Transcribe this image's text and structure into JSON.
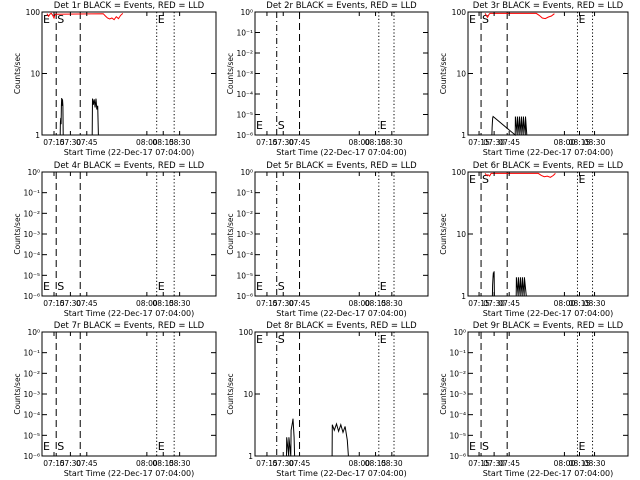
{
  "figure": {
    "xlabel": "Start Time (22-Dec-17 07:04:00)",
    "ylabel": "Counts/sec"
  },
  "chart_data": [
    {
      "type": "line",
      "title": "Det 1r BLACK = Events, RED = LLD",
      "xticks": [
        "07:15",
        "07:30",
        "07:45",
        "08:00",
        "08:15",
        "08:30"
      ],
      "yscale": "log",
      "yticks": [
        "1",
        "10",
        "100"
      ],
      "ylim": [
        1,
        100
      ],
      "markers": [
        {
          "label": "E",
          "time": "07:04",
          "style": "none"
        },
        {
          "label": "S",
          "time": "07:17",
          "style": "long-dash"
        },
        {
          "label": "",
          "time": "07:39",
          "style": "long-dash"
        },
        {
          "label": "E",
          "time": "08:09",
          "style": "dotted"
        },
        {
          "label": "",
          "time": "08:25",
          "style": "dotted"
        }
      ],
      "series": [
        {
          "color": "#000000",
          "points": [
            [
              7.207,
              1.0
            ],
            [
              7.208,
              1.6
            ],
            [
              7.212,
              1.9
            ],
            [
              7.215,
              1.5
            ],
            [
              7.218,
              3.0
            ],
            [
              7.22,
              4.0
            ],
            [
              7.222,
              3.1
            ],
            [
              7.225,
              3.0
            ],
            [
              7.228,
              3.8
            ],
            [
              7.231,
              3.0
            ],
            [
              7.234,
              1.0
            ],
            [
              7.5,
              1.0
            ],
            [
              7.502,
              3.9
            ],
            [
              7.51,
              3.1
            ],
            [
              7.518,
              3.8
            ],
            [
              7.526,
              2.8
            ],
            [
              7.534,
              3.9
            ],
            [
              7.542,
              2.6
            ],
            [
              7.55,
              3.0
            ],
            [
              7.556,
              1.0
            ]
          ]
        },
        {
          "color": "#ff0000",
          "points": [
            [
              7.085,
              94
            ],
            [
              7.1,
              85
            ],
            [
              7.115,
              93
            ],
            [
              7.125,
              95
            ],
            [
              7.135,
              90
            ],
            [
              7.15,
              80
            ],
            [
              7.16,
              92
            ],
            [
              7.6,
              94
            ],
            [
              7.62,
              86
            ],
            [
              7.64,
              80
            ],
            [
              7.66,
              77
            ],
            [
              7.68,
              80
            ],
            [
              7.7,
              75
            ],
            [
              7.72,
              84
            ],
            [
              7.74,
              78
            ],
            [
              7.76,
              88
            ],
            [
              7.78,
              95
            ]
          ]
        }
      ]
    },
    {
      "type": "line",
      "title": "Det 2r BLACK = Events, RED = LLD",
      "xticks": [
        "07:15",
        "07:30",
        "07:45",
        "08:00",
        "08:15",
        "08:30"
      ],
      "yscale": "log",
      "yticks": [
        "10⁰",
        "10⁻¹",
        "10⁻²",
        "10⁻³",
        "10⁻⁴",
        "10⁻⁵",
        "10⁻⁶"
      ],
      "ylim": [
        1e-06,
        1
      ],
      "markers": [
        {
          "label": "E",
          "time": "07:04",
          "style": "none"
        },
        {
          "label": "S",
          "time": "07:24",
          "style": "dash-dot"
        },
        {
          "label": "",
          "time": "07:45",
          "style": "long-dash"
        },
        {
          "label": "E",
          "time": "08:18",
          "style": "dotted"
        },
        {
          "label": "",
          "time": "08:32",
          "style": "dotted"
        }
      ],
      "series": []
    },
    {
      "type": "line",
      "title": "Det 3r BLACK = Events, RED = LLD",
      "xticks": [
        "07:15",
        "07:30",
        "07:45",
        "08:00",
        "08:15",
        "08:30"
      ],
      "yscale": "log",
      "yticks": [
        "1",
        "10",
        "100"
      ],
      "ylim": [
        1,
        100
      ],
      "markers": [
        {
          "label": "E",
          "time": "07:04",
          "style": "none"
        },
        {
          "label": "S",
          "time": "07:17",
          "style": "long-dash"
        },
        {
          "label": "",
          "time": "07:43",
          "style": "long-dash"
        },
        {
          "label": "E",
          "time": "08:13",
          "style": "dotted"
        },
        {
          "label": "",
          "time": "08:28",
          "style": "dotted"
        }
      ],
      "series": [
        {
          "color": "#000000",
          "points": [
            [
              7.278,
              1.0
            ],
            [
              7.28,
              1.3
            ],
            [
              7.283,
              1.6
            ],
            [
              7.286,
              1.9
            ],
            [
              7.29,
              2.0
            ],
            [
              7.51,
              1.0
            ],
            [
              7.512,
              2.0
            ],
            [
              7.53,
              1.0
            ],
            [
              7.532,
              2.0
            ],
            [
              7.55,
              1.0
            ],
            [
              7.552,
              2.0
            ],
            [
              7.57,
              1.0
            ],
            [
              7.572,
              2.0
            ],
            [
              7.59,
              1.0
            ],
            [
              7.592,
              2.0
            ],
            [
              7.61,
              1.0
            ],
            [
              7.612,
              2.0
            ],
            [
              7.625,
              1.0
            ]
          ]
        },
        {
          "color": "#ff0000",
          "points": [
            [
              7.21,
              95
            ],
            [
              7.225,
              86
            ],
            [
              7.235,
              82
            ],
            [
              7.25,
              92
            ],
            [
              7.26,
              95
            ],
            [
              7.72,
              95
            ],
            [
              7.75,
              88
            ],
            [
              7.78,
              80
            ],
            [
              7.81,
              78
            ],
            [
              7.84,
              83
            ],
            [
              7.87,
              86
            ],
            [
              7.9,
              94
            ]
          ]
        }
      ]
    },
    {
      "type": "line",
      "title": "Det 4r BLACK = Events, RED = LLD",
      "xticks": [
        "07:15",
        "07:30",
        "07:45",
        "08:00",
        "08:15",
        "08:30"
      ],
      "yscale": "log",
      "yticks": [
        "10⁰",
        "10⁻¹",
        "10⁻²",
        "10⁻³",
        "10⁻⁴",
        "10⁻⁵",
        "10⁻⁶"
      ],
      "ylim": [
        1e-06,
        1
      ],
      "markers": [
        {
          "label": "E",
          "time": "07:04",
          "style": "none"
        },
        {
          "label": "S",
          "time": "07:17",
          "style": "long-dash"
        },
        {
          "label": "",
          "time": "07:39",
          "style": "long-dash"
        },
        {
          "label": "E",
          "time": "08:09",
          "style": "dotted"
        },
        {
          "label": "",
          "time": "08:25",
          "style": "dotted"
        }
      ],
      "series": []
    },
    {
      "type": "line",
      "title": "Det 5r BLACK = Events, RED = LLD",
      "xticks": [
        "07:15",
        "07:30",
        "07:45",
        "08:00",
        "08:15",
        "08:30"
      ],
      "yscale": "log",
      "yticks": [
        "10⁰",
        "10⁻¹",
        "10⁻²",
        "10⁻³",
        "10⁻⁴",
        "10⁻⁵",
        "10⁻⁶"
      ],
      "ylim": [
        1e-06,
        1
      ],
      "markers": [
        {
          "label": "E",
          "time": "07:04",
          "style": "none"
        },
        {
          "label": "S",
          "time": "07:24",
          "style": "dash-dot"
        },
        {
          "label": "",
          "time": "07:45",
          "style": "long-dash"
        },
        {
          "label": "E",
          "time": "08:18",
          "style": "dotted"
        },
        {
          "label": "",
          "time": "08:32",
          "style": "dotted"
        }
      ],
      "series": []
    },
    {
      "type": "line",
      "title": "Det 6r BLACK = Events, RED = LLD",
      "xticks": [
        "07:15",
        "07:30",
        "07:45",
        "08:00",
        "08:15",
        "08:30"
      ],
      "yscale": "log",
      "yticks": [
        "1",
        "10",
        "100"
      ],
      "ylim": [
        1,
        100
      ],
      "markers": [
        {
          "label": "E",
          "time": "07:04",
          "style": "none"
        },
        {
          "label": "S",
          "time": "07:17",
          "style": "long-dash"
        },
        {
          "label": "",
          "time": "07:43",
          "style": "long-dash"
        },
        {
          "label": "E",
          "time": "08:13",
          "style": "dotted"
        },
        {
          "label": "",
          "time": "08:28",
          "style": "dotted"
        }
      ],
      "series": [
        {
          "color": "#000000",
          "points": [
            [
              7.283,
              1.0
            ],
            [
              7.285,
              1.5
            ],
            [
              7.29,
              2.1
            ],
            [
              7.293,
              2.4
            ],
            [
              7.296,
              2.0
            ],
            [
              7.3,
              2.5
            ],
            [
              7.303,
              1.0
            ],
            [
              7.52,
              1.0
            ],
            [
              7.522,
              2.0
            ],
            [
              7.54,
              1.0
            ],
            [
              7.542,
              2.0
            ],
            [
              7.56,
              1.0
            ],
            [
              7.562,
              2.0
            ],
            [
              7.58,
              1.0
            ],
            [
              7.582,
              2.0
            ],
            [
              7.6,
              1.0
            ],
            [
              7.602,
              2.0
            ],
            [
              7.62,
              1.0
            ]
          ]
        },
        {
          "color": "#ff0000",
          "points": [
            [
              7.21,
              95
            ],
            [
              7.225,
              88
            ],
            [
              7.24,
              90
            ],
            [
              7.255,
              86
            ],
            [
              7.27,
              95
            ],
            [
              7.74,
              95
            ],
            [
              7.77,
              88
            ],
            [
              7.8,
              84
            ],
            [
              7.83,
              86
            ],
            [
              7.86,
              82
            ],
            [
              7.89,
              88
            ],
            [
              7.91,
              95
            ]
          ]
        }
      ]
    },
    {
      "type": "line",
      "title": "Det 7r BLACK = Events, RED = LLD",
      "xticks": [
        "07:15",
        "07:30",
        "07:45",
        "08:00",
        "08:15",
        "08:30"
      ],
      "yscale": "log",
      "yticks": [
        "10⁰",
        "10⁻¹",
        "10⁻²",
        "10⁻³",
        "10⁻⁴",
        "10⁻⁵",
        "10⁻⁶"
      ],
      "ylim": [
        1e-06,
        1
      ],
      "markers": [
        {
          "label": "E",
          "time": "07:04",
          "style": "none"
        },
        {
          "label": "S",
          "time": "07:17",
          "style": "long-dash"
        },
        {
          "label": "",
          "time": "07:39",
          "style": "long-dash"
        },
        {
          "label": "E",
          "time": "08:09",
          "style": "dotted"
        },
        {
          "label": "",
          "time": "08:25",
          "style": "dotted"
        }
      ],
      "series": []
    },
    {
      "type": "line",
      "title": "Det 8r BLACK = Events, RED = LLD",
      "xticks": [
        "07:15",
        "07:30",
        "07:45",
        "08:00",
        "08:15",
        "08:30"
      ],
      "yscale": "log",
      "yticks": [
        "1",
        "10",
        "100"
      ],
      "ylim": [
        1,
        100
      ],
      "markers": [
        {
          "label": "E",
          "time": "07:04",
          "style": "none"
        },
        {
          "label": "S",
          "time": "07:24",
          "style": "dash-dot"
        },
        {
          "label": "",
          "time": "07:45",
          "style": "long-dash"
        },
        {
          "label": "E",
          "time": "08:18",
          "style": "dotted"
        },
        {
          "label": "",
          "time": "08:32",
          "style": "dotted"
        }
      ],
      "series": [
        {
          "color": "#000000",
          "points": [
            [
              7.33,
              1.0
            ],
            [
              7.332,
              2.0
            ],
            [
              7.35,
              1.0
            ],
            [
              7.352,
              2.0
            ],
            [
              7.37,
              1.0
            ],
            [
              7.372,
              2.6
            ],
            [
              7.385,
              3.5
            ],
            [
              7.39,
              4.0
            ],
            [
              7.4,
              2.0
            ],
            [
              7.405,
              1.0
            ],
            [
              7.75,
              1.0
            ],
            [
              7.752,
              3.2
            ],
            [
              7.77,
              2.6
            ],
            [
              7.79,
              3.3
            ],
            [
              7.81,
              2.5
            ],
            [
              7.83,
              3.2
            ],
            [
              7.85,
              2.4
            ],
            [
              7.87,
              3.0
            ],
            [
              7.89,
              1.8
            ],
            [
              7.9,
              1.0
            ]
          ]
        }
      ]
    },
    {
      "type": "line",
      "title": "Det 9r BLACK = Events, RED = LLD",
      "xticks": [
        "07:15",
        "07:30",
        "07:45",
        "08:00",
        "08:15",
        "08:30"
      ],
      "yscale": "log",
      "yticks": [
        "10⁰",
        "10⁻¹",
        "10⁻²",
        "10⁻³",
        "10⁻⁴",
        "10⁻⁵",
        "10⁻⁶"
      ],
      "ylim": [
        1e-06,
        1
      ],
      "markers": [
        {
          "label": "E",
          "time": "07:04",
          "style": "none"
        },
        {
          "label": "S",
          "time": "07:17",
          "style": "long-dash"
        },
        {
          "label": "",
          "time": "07:43",
          "style": "long-dash"
        },
        {
          "label": "E",
          "time": "08:13",
          "style": "dotted"
        },
        {
          "label": "",
          "time": "08:28",
          "style": "dotted"
        }
      ],
      "series": []
    }
  ]
}
